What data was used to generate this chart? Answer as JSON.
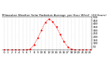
{
  "title": "Milwaukee Weather Solar Radiation Average  per Hour W/m2  (24 Hours)",
  "hours": [
    0,
    1,
    2,
    3,
    4,
    5,
    6,
    7,
    8,
    9,
    10,
    11,
    12,
    13,
    14,
    15,
    16,
    17,
    18,
    19,
    20,
    21,
    22,
    23
  ],
  "values": [
    0,
    0,
    0,
    0,
    0,
    0,
    2,
    15,
    80,
    180,
    300,
    420,
    470,
    430,
    350,
    240,
    130,
    50,
    10,
    2,
    0,
    0,
    0,
    0
  ],
  "line_color": "#ff0000",
  "bg_color": "#ffffff",
  "grid_color": "#bbbbbb",
  "ylim": [
    0,
    500
  ],
  "yticks": [
    50,
    100,
    150,
    200,
    250,
    300,
    350,
    400,
    450,
    500
  ],
  "title_fontsize": 3.0,
  "tick_fontsize": 2.8
}
